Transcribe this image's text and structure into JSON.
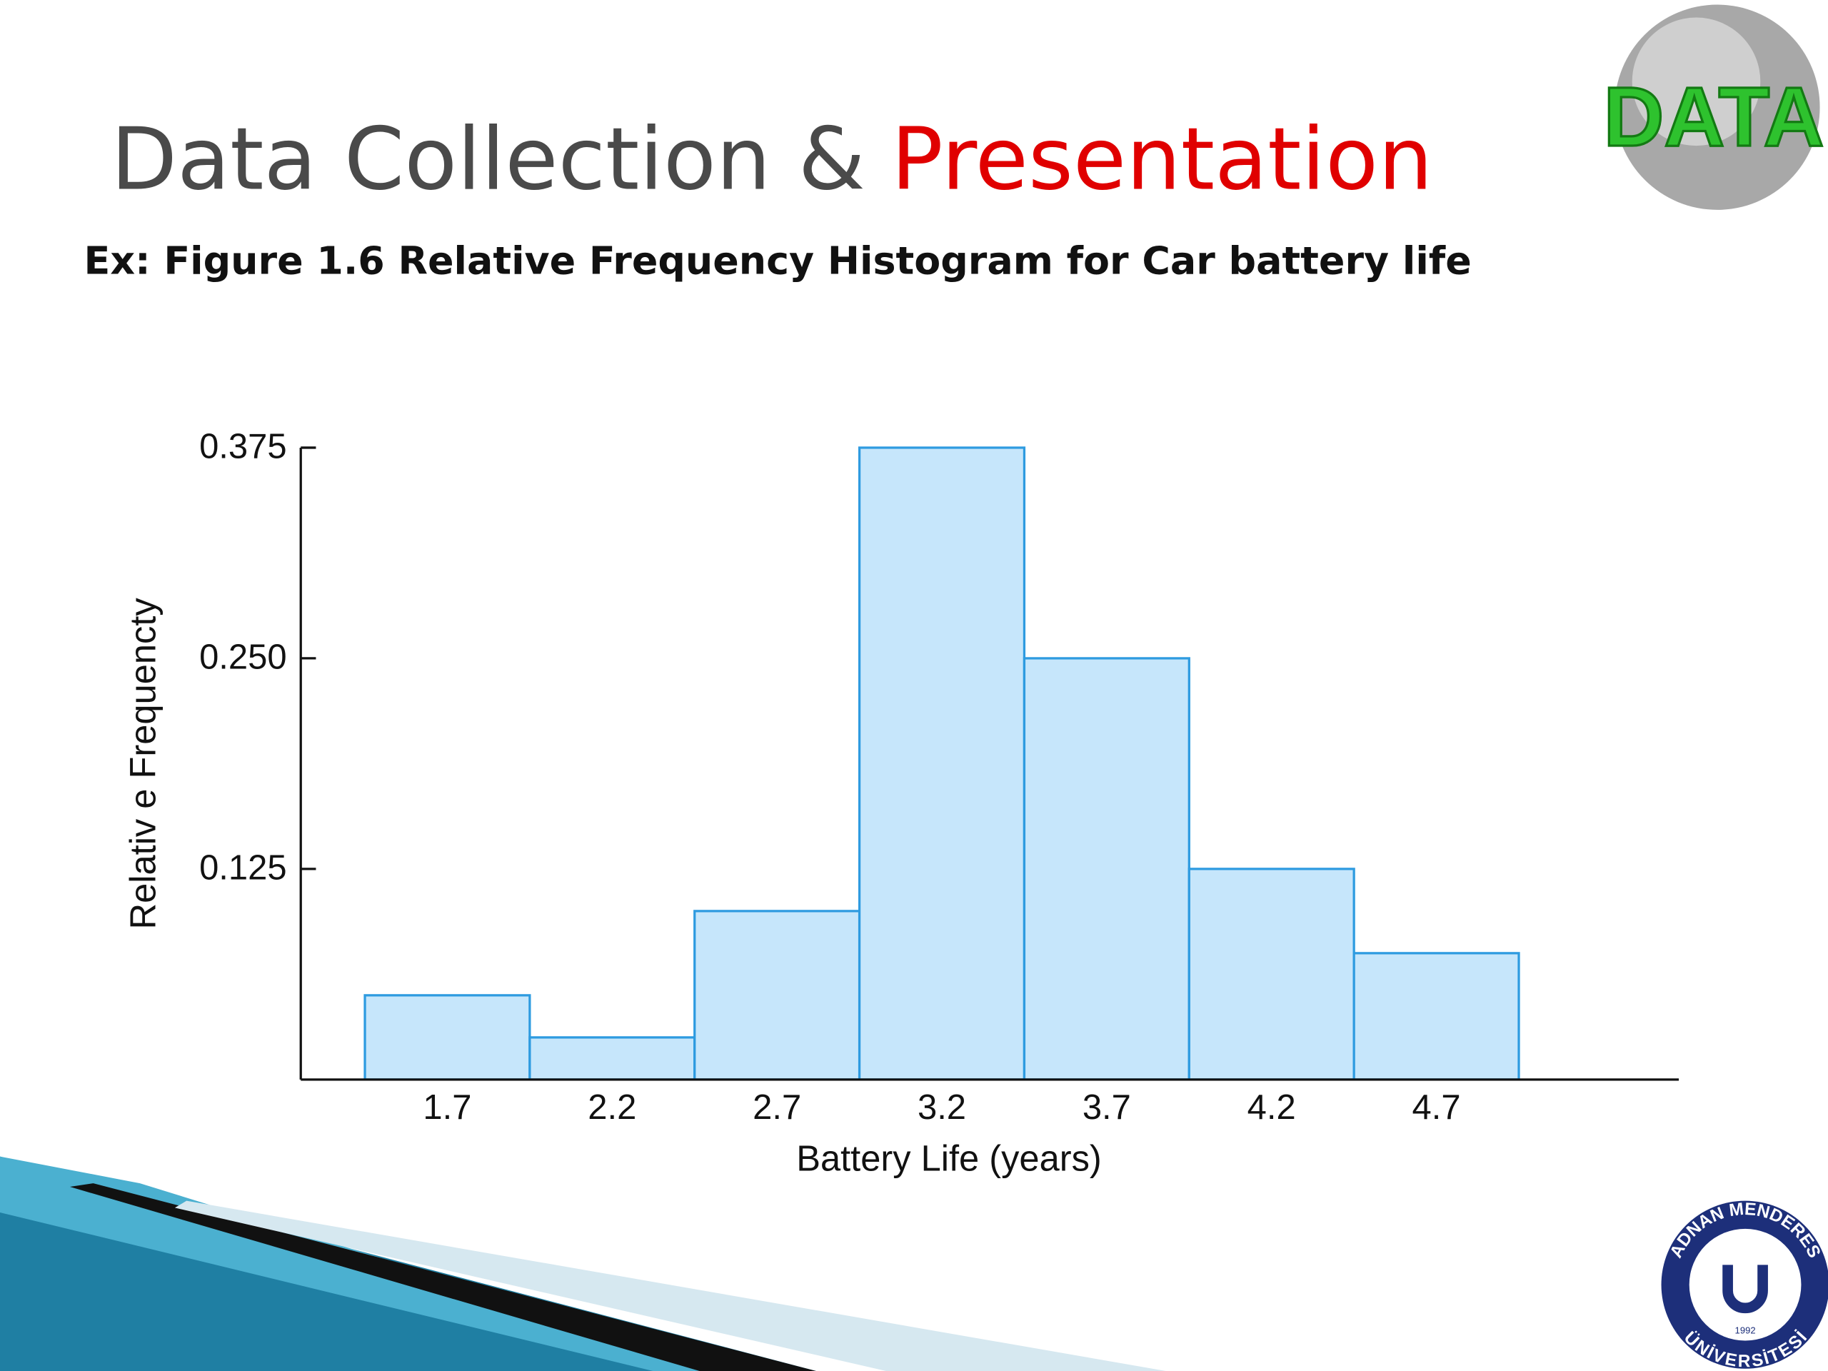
{
  "slide": {
    "title": "Data Collection &",
    "title_highlight": "Presentation",
    "subtitle": "Ex: Figure 1.6 Relative Frequency Histogram for Car battery life",
    "logo_text": "DATA",
    "university_top": "ADNAN MENDERES",
    "university_bottom": "ÜNİVERSİTESİ",
    "university_year": "1992"
  },
  "chart_data": {
    "type": "bar",
    "x_label": "Battery Life (years)",
    "y_label": "Relativ e Frequencty",
    "categories": [
      "1.7",
      "2.2",
      "2.7",
      "3.2",
      "3.7",
      "4.2",
      "4.7"
    ],
    "values": [
      0.05,
      0.025,
      0.1,
      0.375,
      0.25,
      0.125,
      0.075
    ],
    "color": "#c6e6fb",
    "edge_color": "#2e9be0",
    "ylim": [
      0,
      0.375
    ],
    "yticks": [
      0.125,
      {
        "value": 0.25,
        "label": "0.250"
      },
      0.375
    ],
    "grid": false
  }
}
